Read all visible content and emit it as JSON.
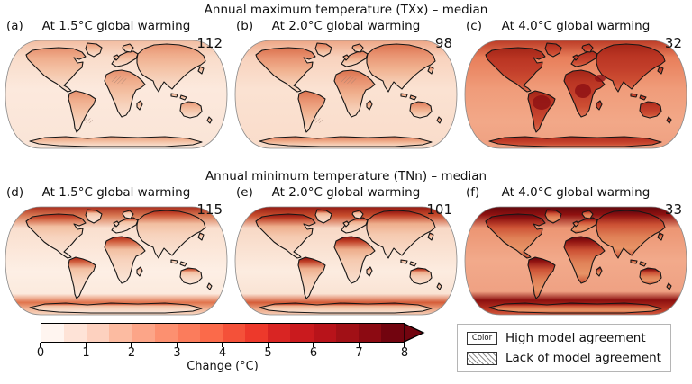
{
  "figure": {
    "background": "#ffffff",
    "rows": [
      {
        "title": "Annual maximum temperature (TXx) – median",
        "panels": [
          {
            "label": "(a)",
            "title": "At 1.5°C global warming",
            "count": "112",
            "hatch": true,
            "colors": {
              "ocean_stops": [
                [
                  0,
                  "#f2bb9f"
                ],
                [
                  0.16,
                  "#f9dcca"
                ],
                [
                  0.45,
                  "#fce9dd"
                ],
                [
                  1,
                  "#fae4d6"
                ]
              ],
              "land_stops": [
                [
                  0,
                  "#e68f6d"
                ],
                [
                  0.22,
                  "#efac8b"
                ],
                [
                  0.5,
                  "#f4c2a5"
                ],
                [
                  0.78,
                  "#f7d4bf"
                ],
                [
                  1,
                  "#f9e0d0"
                ]
              ]
            }
          },
          {
            "label": "(b)",
            "title": "At 2.0°C global warming",
            "count": "98",
            "hatch": true,
            "colors": {
              "ocean_stops": [
                [
                  0,
                  "#eda483"
                ],
                [
                  0.16,
                  "#f8d2bd"
                ],
                [
                  0.45,
                  "#fbe2d2"
                ],
                [
                  1,
                  "#f9dcca"
                ]
              ],
              "land_stops": [
                [
                  0,
                  "#db724e"
                ],
                [
                  0.22,
                  "#e89270"
                ],
                [
                  0.5,
                  "#f0b08e"
                ],
                [
                  0.78,
                  "#f5cab0"
                ],
                [
                  1,
                  "#f8d9c5"
                ]
              ]
            }
          },
          {
            "label": "(c)",
            "title": "At 4.0°C global warming",
            "count": "32",
            "hatch": false,
            "colors": {
              "ocean_stops": [
                [
                  0,
                  "#b93723"
                ],
                [
                  0.16,
                  "#e87e5a"
                ],
                [
                  0.45,
                  "#f09c7a"
                ],
                [
                  0.75,
                  "#f2a888"
                ],
                [
                  1,
                  "#efa081"
                ]
              ],
              "land_stops": [
                [
                  0,
                  "#a32517"
                ],
                [
                  0.25,
                  "#ba3523"
                ],
                [
                  0.5,
                  "#c23e2a"
                ],
                [
                  0.78,
                  "#cd4e33"
                ],
                [
                  1,
                  "#dd7052"
                ]
              ],
              "hotspot": "#8c1013"
            }
          }
        ]
      },
      {
        "title": "Annual minimum temperature (TNn) – median",
        "panels": [
          {
            "label": "(d)",
            "title": "At 1.5°C global warming",
            "count": "115",
            "hatch": false,
            "colors": {
              "ocean_stops": [
                [
                  0,
                  "#a52516"
                ],
                [
                  0.09,
                  "#d97a54"
                ],
                [
                  0.2,
                  "#fadfce"
                ],
                [
                  0.6,
                  "#fdefe5"
                ],
                [
                  0.8,
                  "#fceadd"
                ],
                [
                  0.88,
                  "#e0744c"
                ],
                [
                  0.94,
                  "#f2b597"
                ],
                [
                  1,
                  "#f8dcc9"
                ]
              ],
              "land_stops": [
                [
                  0,
                  "#ab2718"
                ],
                [
                  0.1,
                  "#cf5a3a"
                ],
                [
                  0.28,
                  "#f2bfa1"
                ],
                [
                  0.5,
                  "#f7d2bc"
                ],
                [
                  0.85,
                  "#f9e0d0"
                ],
                [
                  1,
                  "#fae6d9"
                ]
              ]
            }
          },
          {
            "label": "(e)",
            "title": "At 2.0°C global warming",
            "count": "101",
            "hatch": false,
            "colors": {
              "ocean_stops": [
                [
                  0,
                  "#8e130f"
                ],
                [
                  0.09,
                  "#c94f2e"
                ],
                [
                  0.2,
                  "#f8d8c5"
                ],
                [
                  0.6,
                  "#fcece0"
                ],
                [
                  0.8,
                  "#fae3d4"
                ],
                [
                  0.88,
                  "#d55c38"
                ],
                [
                  0.94,
                  "#eda685"
                ],
                [
                  1,
                  "#f6d2bd"
                ]
              ],
              "land_stops": [
                [
                  0,
                  "#8a110f"
                ],
                [
                  0.1,
                  "#bf3f26"
                ],
                [
                  0.28,
                  "#eeae8c"
                ],
                [
                  0.5,
                  "#f5c9af"
                ],
                [
                  0.85,
                  "#f8d9c6"
                ],
                [
                  1,
                  "#f9dfcf"
                ]
              ]
            }
          },
          {
            "label": "(f)",
            "title": "At 4.0°C global warming",
            "count": "33",
            "hatch": false,
            "colors": {
              "ocean_stops": [
                [
                  0,
                  "#5c060c"
                ],
                [
                  0.08,
                  "#8f1110"
                ],
                [
                  0.2,
                  "#ec9573"
                ],
                [
                  0.5,
                  "#f2aa8b"
                ],
                [
                  0.78,
                  "#efa183"
                ],
                [
                  0.86,
                  "#8c100f"
                ],
                [
                  0.94,
                  "#b83421"
                ],
                [
                  1,
                  "#d86245"
                ]
              ],
              "land_stops": [
                [
                  0,
                  "#600710"
                ],
                [
                  0.1,
                  "#8f1210"
                ],
                [
                  0.3,
                  "#cd5235"
                ],
                [
                  0.55,
                  "#e08157"
                ],
                [
                  0.8,
                  "#e89467"
                ],
                [
                  1,
                  "#c94f33"
                ]
              ]
            }
          }
        ]
      }
    ]
  },
  "colorbar": {
    "label": "Change (°C)",
    "ticks": [
      "0",
      "1",
      "2",
      "3",
      "4",
      "5",
      "6",
      "7",
      "8"
    ],
    "segments": [
      "#fff5f0",
      "#fee3d7",
      "#fdd1bf",
      "#fcbba1",
      "#fca588",
      "#fc9070",
      "#fb7c5c",
      "#fb6a4a",
      "#f45139",
      "#ed392b",
      "#d92523",
      "#ca1a1e",
      "#b8131a",
      "#a11016",
      "#8c0a12",
      "#72040f"
    ],
    "arrow_color": "#72040f",
    "border_color": "#000000"
  },
  "legend": {
    "items": [
      {
        "swatch": "color-box",
        "swatch_text": "Color",
        "label": "High model agreement"
      },
      {
        "swatch": "hatch-box",
        "label": "Lack of model agreement"
      }
    ]
  },
  "chart_data": {
    "type": "heatmap",
    "subtype": "global_map_small_multiples",
    "projection": "Robinson",
    "rows": [
      {
        "title": "Annual maximum temperature (TXx) – median",
        "panels": [
          {
            "label": "(a)",
            "scenario": "At 1.5°C global warming",
            "count": 112
          },
          {
            "label": "(b)",
            "scenario": "At 2.0°C global warming",
            "count": 98
          },
          {
            "label": "(c)",
            "scenario": "At 4.0°C global warming",
            "count": 32
          }
        ]
      },
      {
        "title": "Annual minimum temperature (TNn) – median",
        "panels": [
          {
            "label": "(d)",
            "scenario": "At 1.5°C global warming",
            "count": 115
          },
          {
            "label": "(e)",
            "scenario": "At 2.0°C global warming",
            "count": 101
          },
          {
            "label": "(f)",
            "scenario": "At 4.0°C global warming",
            "count": 33
          }
        ]
      }
    ],
    "colorbar": {
      "label": "Change (°C)",
      "range": [
        0,
        8
      ],
      "n_bins": 16,
      "extend": "max",
      "colormap": "Reds"
    },
    "legend": [
      "Color = High model agreement",
      "Hatching = Lack of model agreement"
    ],
    "pattern_notes": [
      "TXx panels: warming strongest over continental interiors (Amazon, Africa, mid-latitude land), increasing from ~1-2°C at 1.5°C warming to ~4-8°C at 4.0°C warming",
      "TNn panels: warming strongest over the Arctic and along the Antarctic coastline, exceeding 8°C in the Arctic at 4.0°C warming",
      "Overall intensity increases left to right (1.5°C → 2.0°C → 4.0°C global warming)"
    ]
  }
}
